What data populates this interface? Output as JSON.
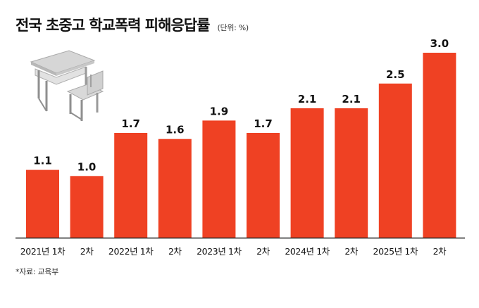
{
  "title": "전국 초중고 학교폭력 피해응답률",
  "unit": "(단위: %)",
  "source": "*자료: 교육부",
  "colors": {
    "bar": "#ef4123",
    "baseline": "#222222",
    "text": "#111111"
  },
  "chart_data": {
    "type": "bar",
    "title": "전국 초중고 학교폭력 피해응답률",
    "xlabel": "",
    "ylabel": "",
    "unit": "%",
    "categories": [
      "2021년 1차",
      "2차",
      "2022년 1차",
      "2차",
      "2023년 1차",
      "2차",
      "2024년 1차",
      "2차",
      "2025년 1차",
      "2차"
    ],
    "values": [
      1.1,
      1.0,
      1.7,
      1.6,
      1.9,
      1.7,
      2.1,
      2.1,
      2.5,
      3.0
    ],
    "value_labels": [
      "1.1",
      "1.0",
      "1.7",
      "1.6",
      "1.9",
      "1.7",
      "2.1",
      "2.1",
      "2.5",
      "3.0"
    ],
    "ylim": [
      0,
      3.0
    ],
    "grid": false,
    "legend": "none",
    "decoration": "desk-and-chair-illustration"
  }
}
